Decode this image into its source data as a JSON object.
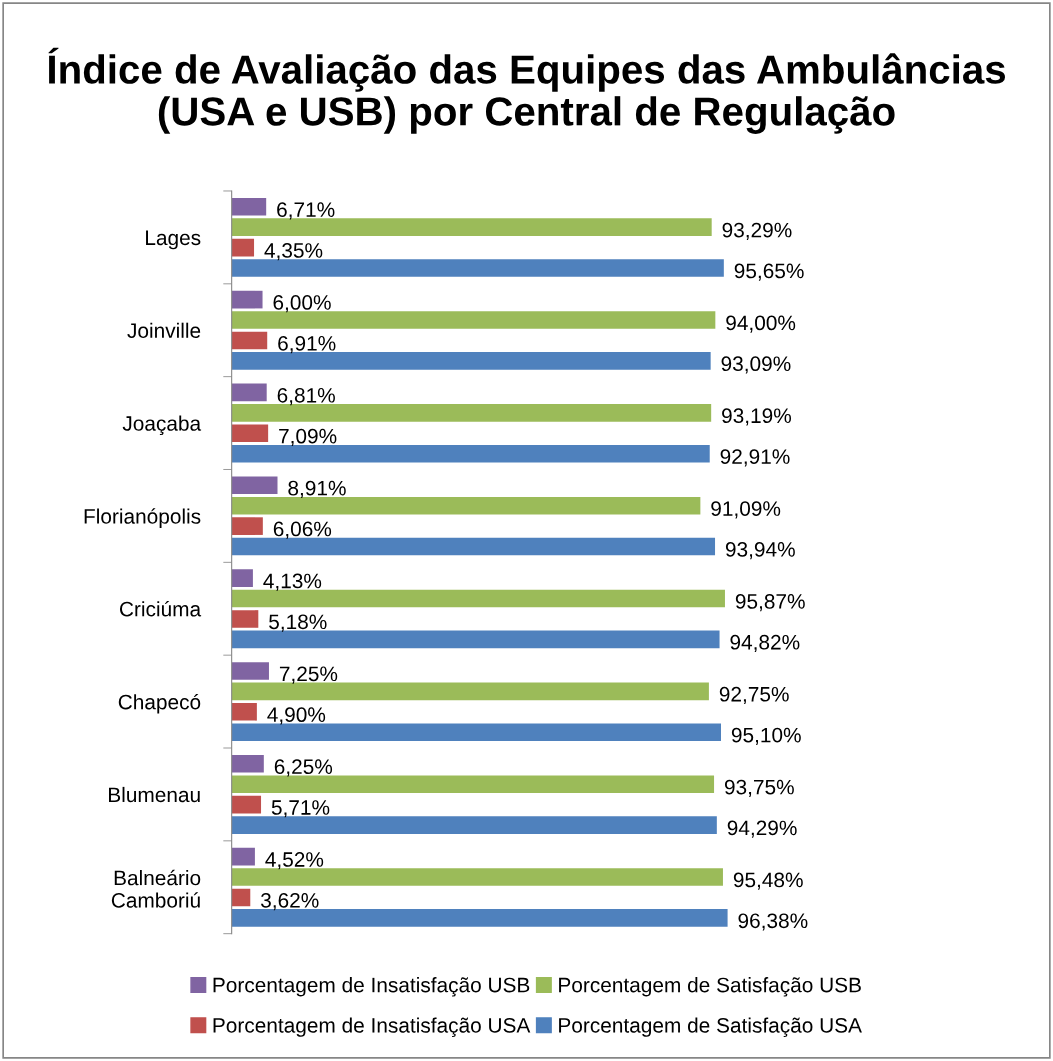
{
  "chart_data": {
    "type": "bar",
    "orientation": "horizontal",
    "title": "Índice de Avaliação das Equipes das Ambulâncias (USA e USB) por Central de Regulação",
    "categories": [
      "Lages",
      "Joinville",
      "Joaçaba",
      "Florianópolis",
      "Criciúma",
      "Chapecó",
      "Blumenau",
      "Balneário Camboriú"
    ],
    "series": [
      {
        "name": "Porcentagem de Insatisfação USB",
        "color": "#8064a2",
        "values": [
          6.71,
          6.0,
          6.81,
          8.91,
          4.13,
          7.25,
          6.25,
          4.52
        ],
        "value_labels": [
          "6,71%",
          "6,00%",
          "6,81%",
          "8,91%",
          "4,13%",
          "7,25%",
          "6,25%",
          "4,52%"
        ]
      },
      {
        "name": "Porcentagem de Satisfação USB",
        "color": "#9bbb59",
        "values": [
          93.29,
          94.0,
          93.19,
          91.09,
          95.87,
          92.75,
          93.75,
          95.48
        ],
        "value_labels": [
          "93,29%",
          "94,00%",
          "93,19%",
          "91,09%",
          "95,87%",
          "92,75%",
          "93,75%",
          "95,48%"
        ]
      },
      {
        "name": "Porcentagem de Insatisfação USA",
        "color": "#c0504d",
        "values": [
          4.35,
          6.91,
          7.09,
          6.06,
          5.18,
          4.9,
          5.71,
          3.62
        ],
        "value_labels": [
          "4,35%",
          "6,91%",
          "7,09%",
          "6,06%",
          "5,18%",
          "4,90%",
          "5,71%",
          "3,62%"
        ]
      },
      {
        "name": "Porcentagem de Satisfação USA",
        "color": "#4f81bd",
        "values": [
          95.65,
          93.09,
          92.91,
          93.94,
          94.82,
          95.1,
          94.29,
          96.38
        ],
        "value_labels": [
          "95,65%",
          "93,09%",
          "92,91%",
          "93,94%",
          "94,82%",
          "95,10%",
          "94,29%",
          "96,38%"
        ]
      }
    ],
    "legend": "bottom",
    "grid": false,
    "tick_labels": "y"
  }
}
